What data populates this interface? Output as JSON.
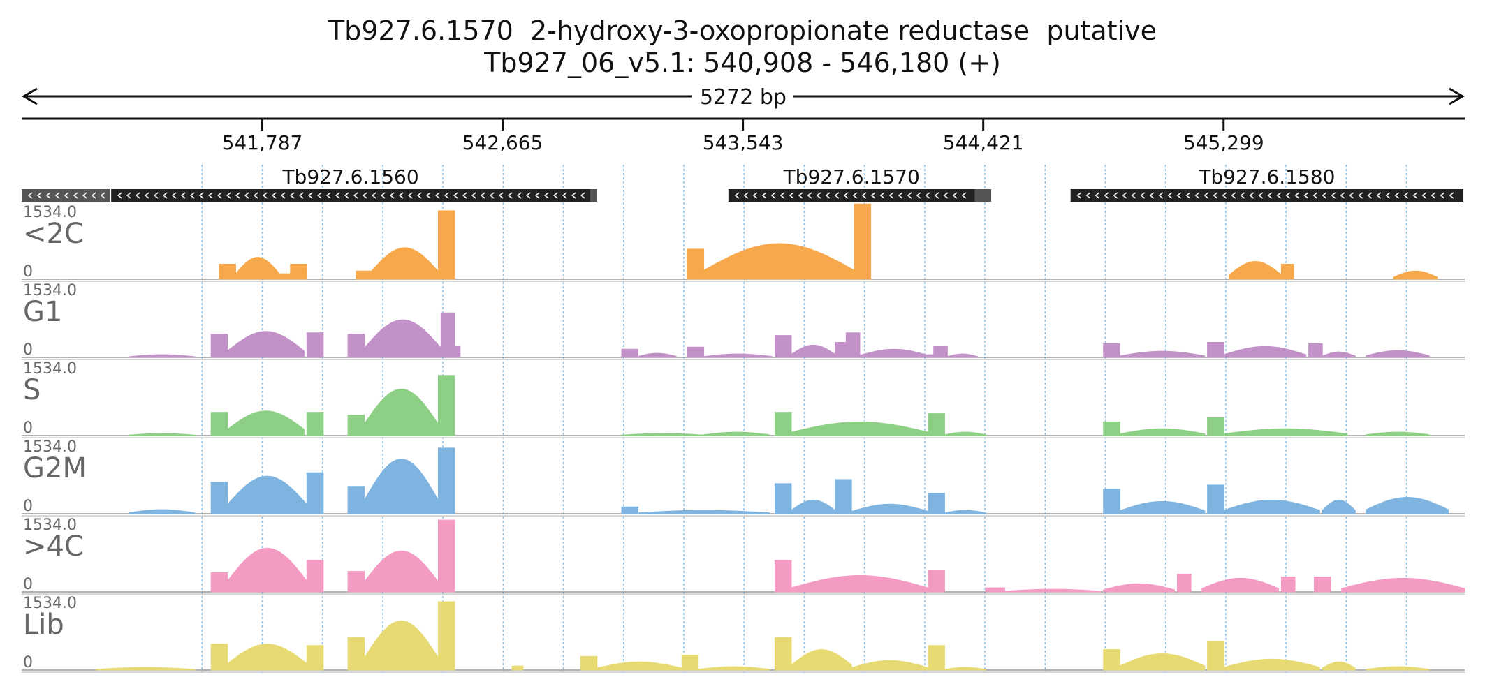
{
  "header": {
    "title": "Tb927.6.1570  2-hydroxy-3-oxopropionate reductase  putative",
    "subtitle": "Tb927_06_v5.1: 540,908 - 546,180 (+)"
  },
  "chart_data": {
    "type": "area",
    "span_label": "5272 bp",
    "xlim": [
      540908,
      546180
    ],
    "ylim": [
      0,
      1534.0
    ],
    "ymax_label": "1534.0",
    "ymin_label": "0",
    "ticks": [
      {
        "value": 541787,
        "label": "541,787"
      },
      {
        "value": 542665,
        "label": "542,665"
      },
      {
        "value": 543543,
        "label": "543,543"
      },
      {
        "value": 544421,
        "label": "544,421"
      },
      {
        "value": 545299,
        "label": "545,299"
      }
    ],
    "genes": [
      {
        "name": "",
        "start": 540908,
        "end": 541230,
        "strand": "-",
        "fill": "#555555"
      },
      {
        "name": "Tb927.6.1560",
        "start": 541235,
        "end": 542985,
        "strand": "-",
        "fill": "#222222"
      },
      {
        "name": "",
        "start": 542985,
        "end": 543010,
        "strand": "",
        "fill": "#555555"
      },
      {
        "name": "Tb927.6.1570",
        "start": 543490,
        "end": 544390,
        "strand": "-",
        "fill": "#222222"
      },
      {
        "name": "",
        "start": 544390,
        "end": 544450,
        "strand": "",
        "fill": "#555555"
      },
      {
        "name": "Tb927.6.1580",
        "start": 544740,
        "end": 546175,
        "strand": "-",
        "fill": "#222222"
      }
    ],
    "series": [
      {
        "name": "<2C",
        "color": "#F7A84B",
        "segments": [
          {
            "start": 541630,
            "end": 541690,
            "level": 0.22,
            "shape": "flat"
          },
          {
            "start": 541690,
            "end": 541850,
            "level": 0.32,
            "shape": "hump"
          },
          {
            "start": 541850,
            "end": 541890,
            "level": 0.08,
            "shape": "flat"
          },
          {
            "start": 541890,
            "end": 541950,
            "level": 0.22,
            "shape": "flat"
          },
          {
            "start": 542130,
            "end": 542185,
            "level": 0.12,
            "shape": "flat"
          },
          {
            "start": 542185,
            "end": 542430,
            "level": 0.46,
            "shape": "hump"
          },
          {
            "start": 542430,
            "end": 542490,
            "level": 1.0,
            "shape": "flat"
          },
          {
            "start": 543340,
            "end": 543400,
            "level": 0.44,
            "shape": "flat"
          },
          {
            "start": 543400,
            "end": 543950,
            "level": 0.52,
            "shape": "hump"
          },
          {
            "start": 543950,
            "end": 544010,
            "level": 1.35,
            "shape": "flat"
          },
          {
            "start": 545320,
            "end": 545510,
            "level": 0.26,
            "shape": "hump"
          },
          {
            "start": 545510,
            "end": 545555,
            "level": 0.22,
            "shape": "flat"
          },
          {
            "start": 545920,
            "end": 546080,
            "level": 0.12,
            "shape": "hump"
          }
        ]
      },
      {
        "name": "G1",
        "color": "#C291C8",
        "segments": [
          {
            "start": 541300,
            "end": 541540,
            "level": 0.04,
            "shape": "hump"
          },
          {
            "start": 541600,
            "end": 541660,
            "level": 0.34,
            "shape": "flat"
          },
          {
            "start": 541660,
            "end": 541940,
            "level": 0.38,
            "shape": "hump"
          },
          {
            "start": 541950,
            "end": 542010,
            "level": 0.36,
            "shape": "flat"
          },
          {
            "start": 542100,
            "end": 542160,
            "level": 0.34,
            "shape": "flat"
          },
          {
            "start": 542160,
            "end": 542440,
            "level": 0.55,
            "shape": "hump"
          },
          {
            "start": 542440,
            "end": 542490,
            "level": 0.65,
            "shape": "flat"
          },
          {
            "start": 542490,
            "end": 542510,
            "level": 0.16,
            "shape": "flat"
          },
          {
            "start": 543100,
            "end": 543160,
            "level": 0.12,
            "shape": "flat"
          },
          {
            "start": 543160,
            "end": 543300,
            "level": 0.06,
            "shape": "hump"
          },
          {
            "start": 543340,
            "end": 543400,
            "level": 0.15,
            "shape": "flat"
          },
          {
            "start": 543400,
            "end": 543650,
            "level": 0.05,
            "shape": "hump"
          },
          {
            "start": 543660,
            "end": 543720,
            "level": 0.32,
            "shape": "flat"
          },
          {
            "start": 543720,
            "end": 543880,
            "level": 0.18,
            "shape": "hump"
          },
          {
            "start": 543880,
            "end": 543920,
            "level": 0.22,
            "shape": "flat"
          },
          {
            "start": 543920,
            "end": 543970,
            "level": 0.36,
            "shape": "flat"
          },
          {
            "start": 543970,
            "end": 544220,
            "level": 0.12,
            "shape": "hump"
          },
          {
            "start": 544220,
            "end": 544260,
            "level": 0.04,
            "shape": "flat"
          },
          {
            "start": 544240,
            "end": 544290,
            "level": 0.16,
            "shape": "flat"
          },
          {
            "start": 544290,
            "end": 544400,
            "level": 0.05,
            "shape": "hump"
          },
          {
            "start": 544860,
            "end": 544920,
            "level": 0.2,
            "shape": "flat"
          },
          {
            "start": 544920,
            "end": 545230,
            "level": 0.09,
            "shape": "hump"
          },
          {
            "start": 545240,
            "end": 545300,
            "level": 0.22,
            "shape": "flat"
          },
          {
            "start": 545300,
            "end": 545600,
            "level": 0.16,
            "shape": "hump"
          },
          {
            "start": 545610,
            "end": 545660,
            "level": 0.2,
            "shape": "flat"
          },
          {
            "start": 545660,
            "end": 545780,
            "level": 0.08,
            "shape": "hump"
          },
          {
            "start": 545820,
            "end": 546050,
            "level": 0.1,
            "shape": "hump"
          }
        ]
      },
      {
        "name": "S",
        "color": "#8ECF86",
        "segments": [
          {
            "start": 541300,
            "end": 541540,
            "level": 0.03,
            "shape": "hump"
          },
          {
            "start": 541600,
            "end": 541660,
            "level": 0.34,
            "shape": "flat"
          },
          {
            "start": 541660,
            "end": 541940,
            "level": 0.36,
            "shape": "hump"
          },
          {
            "start": 541950,
            "end": 542010,
            "level": 0.34,
            "shape": "flat"
          },
          {
            "start": 542100,
            "end": 542160,
            "level": 0.3,
            "shape": "flat"
          },
          {
            "start": 542160,
            "end": 542430,
            "level": 0.68,
            "shape": "hump"
          },
          {
            "start": 542430,
            "end": 542490,
            "level": 0.88,
            "shape": "flat"
          },
          {
            "start": 543100,
            "end": 543400,
            "level": 0.03,
            "shape": "hump"
          },
          {
            "start": 543400,
            "end": 543640,
            "level": 0.05,
            "shape": "hump"
          },
          {
            "start": 543660,
            "end": 543720,
            "level": 0.34,
            "shape": "flat"
          },
          {
            "start": 543720,
            "end": 544220,
            "level": 0.2,
            "shape": "hump"
          },
          {
            "start": 544220,
            "end": 544280,
            "level": 0.32,
            "shape": "flat"
          },
          {
            "start": 544280,
            "end": 544430,
            "level": 0.05,
            "shape": "hump"
          },
          {
            "start": 544860,
            "end": 544920,
            "level": 0.2,
            "shape": "flat"
          },
          {
            "start": 544920,
            "end": 545230,
            "level": 0.1,
            "shape": "hump"
          },
          {
            "start": 545240,
            "end": 545300,
            "level": 0.26,
            "shape": "flat"
          },
          {
            "start": 545300,
            "end": 545750,
            "level": 0.1,
            "shape": "hump"
          },
          {
            "start": 545820,
            "end": 546050,
            "level": 0.05,
            "shape": "hump"
          }
        ]
      },
      {
        "name": "G2M",
        "color": "#7FB4E0",
        "segments": [
          {
            "start": 541300,
            "end": 541540,
            "level": 0.06,
            "shape": "hump"
          },
          {
            "start": 541600,
            "end": 541660,
            "level": 0.46,
            "shape": "flat"
          },
          {
            "start": 541660,
            "end": 541950,
            "level": 0.55,
            "shape": "hump"
          },
          {
            "start": 541950,
            "end": 542010,
            "level": 0.6,
            "shape": "flat"
          },
          {
            "start": 542100,
            "end": 542160,
            "level": 0.4,
            "shape": "flat"
          },
          {
            "start": 542160,
            "end": 542430,
            "level": 0.8,
            "shape": "hump"
          },
          {
            "start": 542430,
            "end": 542490,
            "level": 0.96,
            "shape": "flat"
          },
          {
            "start": 543100,
            "end": 543160,
            "level": 0.1,
            "shape": "flat"
          },
          {
            "start": 543160,
            "end": 543640,
            "level": 0.05,
            "shape": "hump"
          },
          {
            "start": 543660,
            "end": 543720,
            "level": 0.44,
            "shape": "flat"
          },
          {
            "start": 543720,
            "end": 543880,
            "level": 0.2,
            "shape": "hump"
          },
          {
            "start": 543880,
            "end": 543940,
            "level": 0.5,
            "shape": "flat"
          },
          {
            "start": 543940,
            "end": 544220,
            "level": 0.14,
            "shape": "hump"
          },
          {
            "start": 544220,
            "end": 544280,
            "level": 0.3,
            "shape": "flat"
          },
          {
            "start": 544280,
            "end": 544430,
            "level": 0.05,
            "shape": "hump"
          },
          {
            "start": 544860,
            "end": 544920,
            "level": 0.36,
            "shape": "flat"
          },
          {
            "start": 544920,
            "end": 545230,
            "level": 0.18,
            "shape": "hump"
          },
          {
            "start": 545240,
            "end": 545300,
            "level": 0.42,
            "shape": "flat"
          },
          {
            "start": 545300,
            "end": 545650,
            "level": 0.2,
            "shape": "hump"
          },
          {
            "start": 545660,
            "end": 545780,
            "level": 0.2,
            "shape": "hump"
          },
          {
            "start": 545820,
            "end": 546120,
            "level": 0.24,
            "shape": "hump"
          }
        ]
      },
      {
        "name": ">4C",
        "color": "#F49BC4",
        "segments": [
          {
            "start": 541600,
            "end": 541660,
            "level": 0.28,
            "shape": "flat"
          },
          {
            "start": 541660,
            "end": 541950,
            "level": 0.64,
            "shape": "hump"
          },
          {
            "start": 541950,
            "end": 542010,
            "level": 0.46,
            "shape": "flat"
          },
          {
            "start": 542100,
            "end": 542160,
            "level": 0.3,
            "shape": "flat"
          },
          {
            "start": 542160,
            "end": 542430,
            "level": 0.6,
            "shape": "hump"
          },
          {
            "start": 542430,
            "end": 542490,
            "level": 1.05,
            "shape": "flat"
          },
          {
            "start": 543660,
            "end": 543720,
            "level": 0.46,
            "shape": "flat"
          },
          {
            "start": 543720,
            "end": 544220,
            "level": 0.24,
            "shape": "hump"
          },
          {
            "start": 544220,
            "end": 544280,
            "level": 0.32,
            "shape": "flat"
          },
          {
            "start": 544430,
            "end": 544500,
            "level": 0.06,
            "shape": "flat"
          },
          {
            "start": 544500,
            "end": 544850,
            "level": 0.04,
            "shape": "hump"
          },
          {
            "start": 544860,
            "end": 545120,
            "level": 0.12,
            "shape": "hump"
          },
          {
            "start": 545130,
            "end": 545180,
            "level": 0.26,
            "shape": "flat"
          },
          {
            "start": 545220,
            "end": 545500,
            "level": 0.2,
            "shape": "hump"
          },
          {
            "start": 545510,
            "end": 545560,
            "level": 0.22,
            "shape": "flat"
          },
          {
            "start": 545630,
            "end": 545690,
            "level": 0.22,
            "shape": "flat"
          },
          {
            "start": 545730,
            "end": 546180,
            "level": 0.2,
            "shape": "hump"
          }
        ]
      },
      {
        "name": "Lib",
        "color": "#E7DA73",
        "segments": [
          {
            "start": 541180,
            "end": 541540,
            "level": 0.04,
            "shape": "hump"
          },
          {
            "start": 541600,
            "end": 541660,
            "level": 0.38,
            "shape": "flat"
          },
          {
            "start": 541660,
            "end": 541950,
            "level": 0.38,
            "shape": "hump"
          },
          {
            "start": 541950,
            "end": 542010,
            "level": 0.36,
            "shape": "flat"
          },
          {
            "start": 542100,
            "end": 542160,
            "level": 0.48,
            "shape": "flat"
          },
          {
            "start": 542160,
            "end": 542430,
            "level": 0.72,
            "shape": "hump"
          },
          {
            "start": 542430,
            "end": 542490,
            "level": 1.0,
            "shape": "flat"
          },
          {
            "start": 542700,
            "end": 542740,
            "level": 0.06,
            "shape": "flat"
          },
          {
            "start": 542950,
            "end": 543010,
            "level": 0.2,
            "shape": "flat"
          },
          {
            "start": 543010,
            "end": 543320,
            "level": 0.12,
            "shape": "hump"
          },
          {
            "start": 543320,
            "end": 543380,
            "level": 0.22,
            "shape": "flat"
          },
          {
            "start": 543380,
            "end": 543640,
            "level": 0.05,
            "shape": "hump"
          },
          {
            "start": 543660,
            "end": 543720,
            "level": 0.48,
            "shape": "flat"
          },
          {
            "start": 543720,
            "end": 543940,
            "level": 0.3,
            "shape": "hump"
          },
          {
            "start": 543940,
            "end": 544220,
            "level": 0.14,
            "shape": "hump"
          },
          {
            "start": 544220,
            "end": 544280,
            "level": 0.36,
            "shape": "flat"
          },
          {
            "start": 544280,
            "end": 544430,
            "level": 0.04,
            "shape": "hump"
          },
          {
            "start": 544860,
            "end": 544920,
            "level": 0.3,
            "shape": "flat"
          },
          {
            "start": 544920,
            "end": 545230,
            "level": 0.24,
            "shape": "hump"
          },
          {
            "start": 545240,
            "end": 545300,
            "level": 0.42,
            "shape": "flat"
          },
          {
            "start": 545300,
            "end": 545650,
            "level": 0.16,
            "shape": "hump"
          },
          {
            "start": 545660,
            "end": 545780,
            "level": 0.12,
            "shape": "hump"
          },
          {
            "start": 545820,
            "end": 546050,
            "level": 0.05,
            "shape": "hump"
          }
        ]
      }
    ]
  }
}
